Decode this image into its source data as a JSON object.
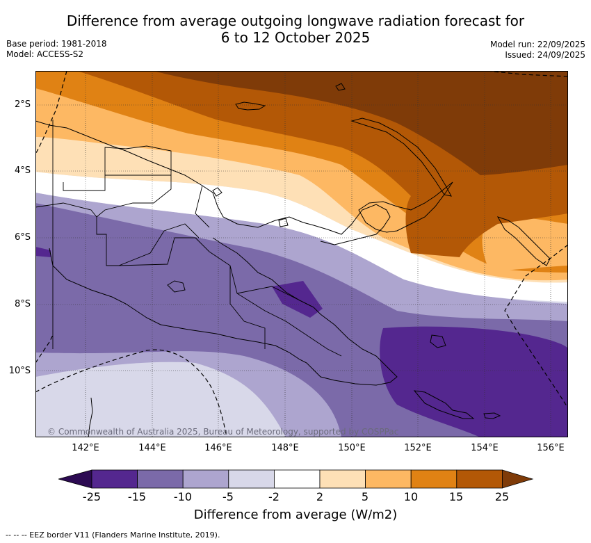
{
  "title_line1": "Difference from average outgoing longwave radiation forecast for",
  "title_line2": "6 to 12 October 2025",
  "base_period": "Base period: 1981-2018",
  "model": "Model: ACCESS-S2",
  "model_run": "Model run: 22/09/2025",
  "issued": "Issued: 24/09/2025",
  "lat_labels": [
    "2°S",
    "4°S",
    "6°S",
    "8°S",
    "10°S"
  ],
  "lon_labels": [
    "142°E",
    "144°E",
    "146°E",
    "148°E",
    "150°E",
    "152°E",
    "154°E",
    "156°E"
  ],
  "copyright": "© Commonwealth of Australia 2025, Bureau of Meteorology, supported by COSPPac",
  "colorbar": {
    "ticks": [
      "-25",
      "-15",
      "-10",
      "-5",
      "-2",
      "2",
      "5",
      "10",
      "15",
      "25"
    ],
    "colors": [
      "#2c0a52",
      "#54278f",
      "#7b6aa9",
      "#ada5cf",
      "#d8d8e9",
      "#ffffff",
      "#fee0b6",
      "#fdb863",
      "#e08214",
      "#b35806",
      "#7f3b08"
    ],
    "label": "Difference from average (W/m2)"
  },
  "legend_eez": "--  --  -- EEZ border V11 (Flanders Marine Institute, 2019)."
}
